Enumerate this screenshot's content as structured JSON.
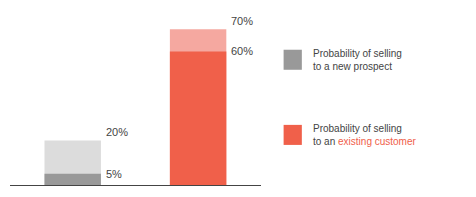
{
  "chart_data": {
    "type": "bar",
    "categories": [
      null,
      null
    ],
    "series": [
      {
        "values": [
          5,
          60
        ],
        "colors": [
          "#999999",
          "#f0604a"
        ],
        "value_labels": [
          "5%",
          "60%"
        ]
      },
      {
        "values": [
          20,
          70
        ],
        "colors": [
          "#dcdcdc",
          "#f5a8a0"
        ],
        "value_labels": [
          "20%",
          "70%"
        ]
      }
    ],
    "ylim": [
      0,
      75
    ],
    "tick_labels": false,
    "data_labels": true,
    "grid": false,
    "annotations": [
      {
        "text": [
          "Probability of selling",
          "to a new prospect"
        ],
        "color": "#999999"
      },
      {
        "text": [
          "Probability of selling",
          "to an existing customer"
        ],
        "color": "#f0604a",
        "highlight": "existing customer"
      }
    ]
  }
}
